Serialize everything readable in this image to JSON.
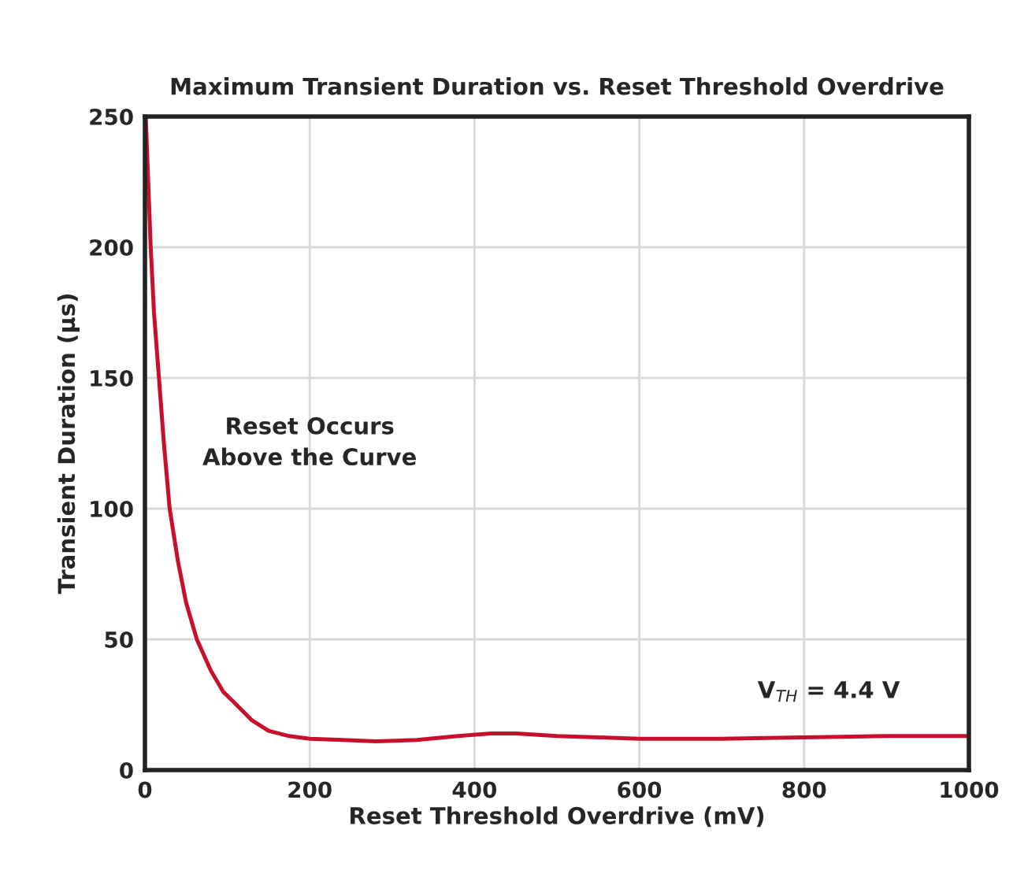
{
  "chart_data": {
    "type": "line",
    "title": "Maximum Transient Duration vs. Reset Threshold Overdrive",
    "xlabel": "Reset Threshold Overdrive (mV)",
    "ylabel": "Transient Duration (µs)",
    "annotations": [
      "Reset Occurs\nAbove the Curve",
      "V$_{TH}$ = 4.4 V"
    ],
    "x": [
      1,
      4,
      7,
      11,
      17,
      23,
      30,
      40,
      50,
      63,
      80,
      95,
      111,
      130,
      150,
      175,
      200,
      240,
      280,
      330,
      380,
      420,
      450,
      500,
      550,
      600,
      700,
      800,
      900,
      1000
    ],
    "series": [
      {
        "color": "#c8102e",
        "values": [
          250,
          225,
          200,
          175,
          150,
          125,
          100,
          80,
          64,
          50,
          38,
          30,
          25,
          19,
          15,
          13,
          12,
          11.5,
          11,
          11.5,
          13,
          14,
          14,
          13,
          12.5,
          12,
          12,
          12.5,
          13,
          13
        ]
      }
    ],
    "xlim": [
      0,
      1000
    ],
    "ylim": [
      0,
      250
    ],
    "xticks": [
      0,
      200,
      400,
      600,
      800,
      1000
    ],
    "yticks": [
      0,
      50,
      100,
      150,
      200,
      250
    ],
    "grid": true,
    "line_style": "solid",
    "marker": "none"
  }
}
